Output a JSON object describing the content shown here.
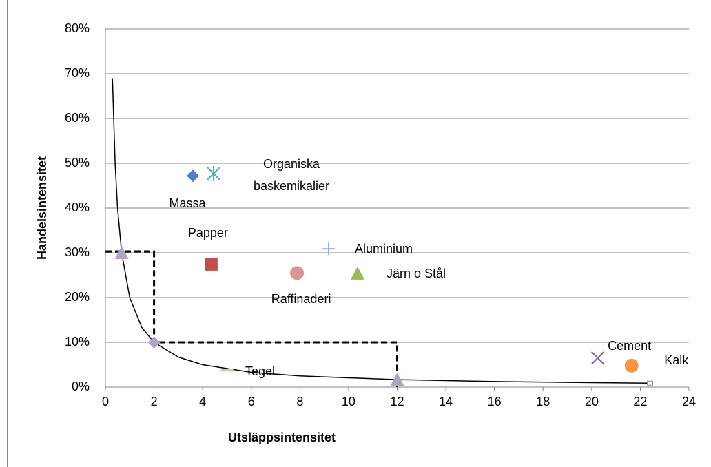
{
  "chart_data": {
    "type": "scatter",
    "x_label": "Utsläppsintensitet",
    "y_label": "Handelsintensitet",
    "xlim": [
      0,
      24
    ],
    "xticks": [
      0,
      2,
      4,
      6,
      8,
      10,
      12,
      14,
      16,
      18,
      20,
      22,
      24
    ],
    "ylim": [
      0,
      80
    ],
    "yticks": [
      {
        "value": 0,
        "label": "0%"
      },
      {
        "value": 10,
        "label": "10%"
      },
      {
        "value": 20,
        "label": "20%"
      },
      {
        "value": 30,
        "label": "30%"
      },
      {
        "value": 40,
        "label": "40%"
      },
      {
        "value": 50,
        "label": "50%"
      },
      {
        "value": 60,
        "label": "60%"
      },
      {
        "value": 70,
        "label": "70%"
      },
      {
        "value": 80,
        "label": "80%"
      }
    ],
    "grid": true,
    "points": [
      {
        "label": "Massa",
        "x": 3.6,
        "y": 47.2,
        "color": "#4f81bd",
        "marker": "diamond"
      },
      {
        "label": "Organiska baskemikalier",
        "x": 4.45,
        "y": 47.7,
        "color": "#4bacc6",
        "marker": "asterisk"
      },
      {
        "label": "Papper",
        "x": 4.36,
        "y": 27.4,
        "color": "#c0504d",
        "marker": "square"
      },
      {
        "label": "Raffinaderi",
        "x": 7.88,
        "y": 25.5,
        "color": "#d99694",
        "marker": "circle"
      },
      {
        "label": "Aluminium",
        "x": 9.18,
        "y": 30.9,
        "color": "#95b3d7",
        "marker": "plus"
      },
      {
        "label": "Järn o Stål",
        "x": 10.37,
        "y": 25.4,
        "color": "#9bbb59",
        "marker": "triangle"
      },
      {
        "label": "Cement",
        "x": 20.25,
        "y": 6.5,
        "color": "#8064a2",
        "marker": "cross"
      },
      {
        "label": "Kalk",
        "x": 21.64,
        "y": 4.8,
        "color": "#f79646",
        "marker": "circle"
      },
      {
        "label": "Tegel",
        "x": 5.0,
        "y": 3.8,
        "color": "#c3d69b",
        "marker": "dash"
      }
    ],
    "curve": {
      "color": "#000000",
      "x": [
        0.29,
        0.4,
        0.5,
        0.67,
        1,
        1.5,
        2,
        3,
        4,
        6,
        8,
        12,
        16,
        20,
        22.4
      ],
      "values": [
        69,
        50,
        40,
        30,
        20,
        13.3,
        10,
        6.7,
        5,
        3.3,
        2.5,
        1.67,
        1.25,
        1,
        0.89
      ]
    },
    "curve_markers": {
      "color": "#b3a2c7",
      "x": [
        0.67,
        2,
        12
      ],
      "values": [
        30,
        10,
        1.67
      ],
      "markers": [
        "triangle",
        "diamond",
        "triangle"
      ]
    },
    "curve_end": {
      "x": 22.4,
      "y": 0.89,
      "color": "#ffffff"
    },
    "guide": {
      "color": "#000000",
      "x": [
        0,
        2,
        2,
        12,
        12
      ],
      "values": [
        30.3,
        30.3,
        10,
        10,
        0
      ]
    }
  }
}
